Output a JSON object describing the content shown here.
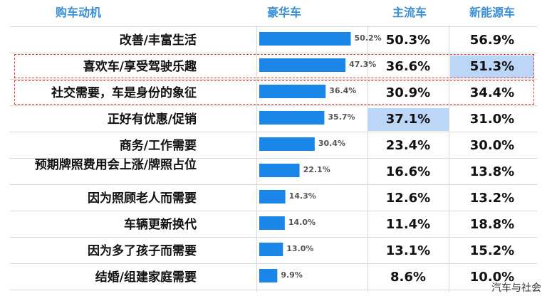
{
  "chart_data": {
    "type": "table",
    "columns": [
      "购车动机",
      "豪华车",
      "主流车",
      "新能源车"
    ],
    "rows": [
      {
        "category": "改善/丰富生活",
        "luxury": 50.2,
        "mainstream": "50.3%",
        "nev": "56.9%"
      },
      {
        "category": "喜欢车/享受驾驶乐趣",
        "luxury": 47.3,
        "mainstream": "36.6%",
        "nev": "51.3%"
      },
      {
        "category": "社交需要，车是身份的象征",
        "luxury": 36.4,
        "mainstream": "30.9%",
        "nev": "34.4%"
      },
      {
        "category": "正好有优惠/促销",
        "luxury": 35.7,
        "mainstream": "37.1%",
        "nev": "31.0%"
      },
      {
        "category": "商务/工作需要",
        "luxury": 30.4,
        "mainstream": "23.4%",
        "nev": "30.0%"
      },
      {
        "category": "预期牌照费用会上涨/牌照占位",
        "luxury": 22.1,
        "mainstream": "16.6%",
        "nev": "13.8%"
      },
      {
        "category": "因为照顾老人而需要",
        "luxury": 14.3,
        "mainstream": "12.6%",
        "nev": "13.2%"
      },
      {
        "category": "车辆更新换代",
        "luxury": 14.0,
        "mainstream": "11.4%",
        "nev": "18.8%"
      },
      {
        "category": "因为多了孩子而需要",
        "luxury": 13.0,
        "mainstream": "13.1%",
        "nev": "15.2%"
      },
      {
        "category": "结婚/组建家庭需要",
        "luxury": 9.9,
        "mainstream": "8.6%",
        "nev": "10.0%"
      }
    ],
    "luxury_labels": [
      "50.2%",
      "47.3%",
      "36.4%",
      "35.7%",
      "30.4%",
      "22.1%",
      "14.3%",
      "14.0%",
      "13.0%",
      "9.9%"
    ],
    "highlighted_cells": [
      {
        "row": 1,
        "column": "新能源车"
      },
      {
        "row": 3,
        "column": "主流车"
      }
    ],
    "highlight_color": "#bcd6f7",
    "bar_color": "#1a87e8",
    "header_color": "#3a8fd6",
    "dashed_box_color": "#e53935",
    "dashed_rows": [
      1,
      2
    ]
  },
  "watermark": "汽车与社会"
}
